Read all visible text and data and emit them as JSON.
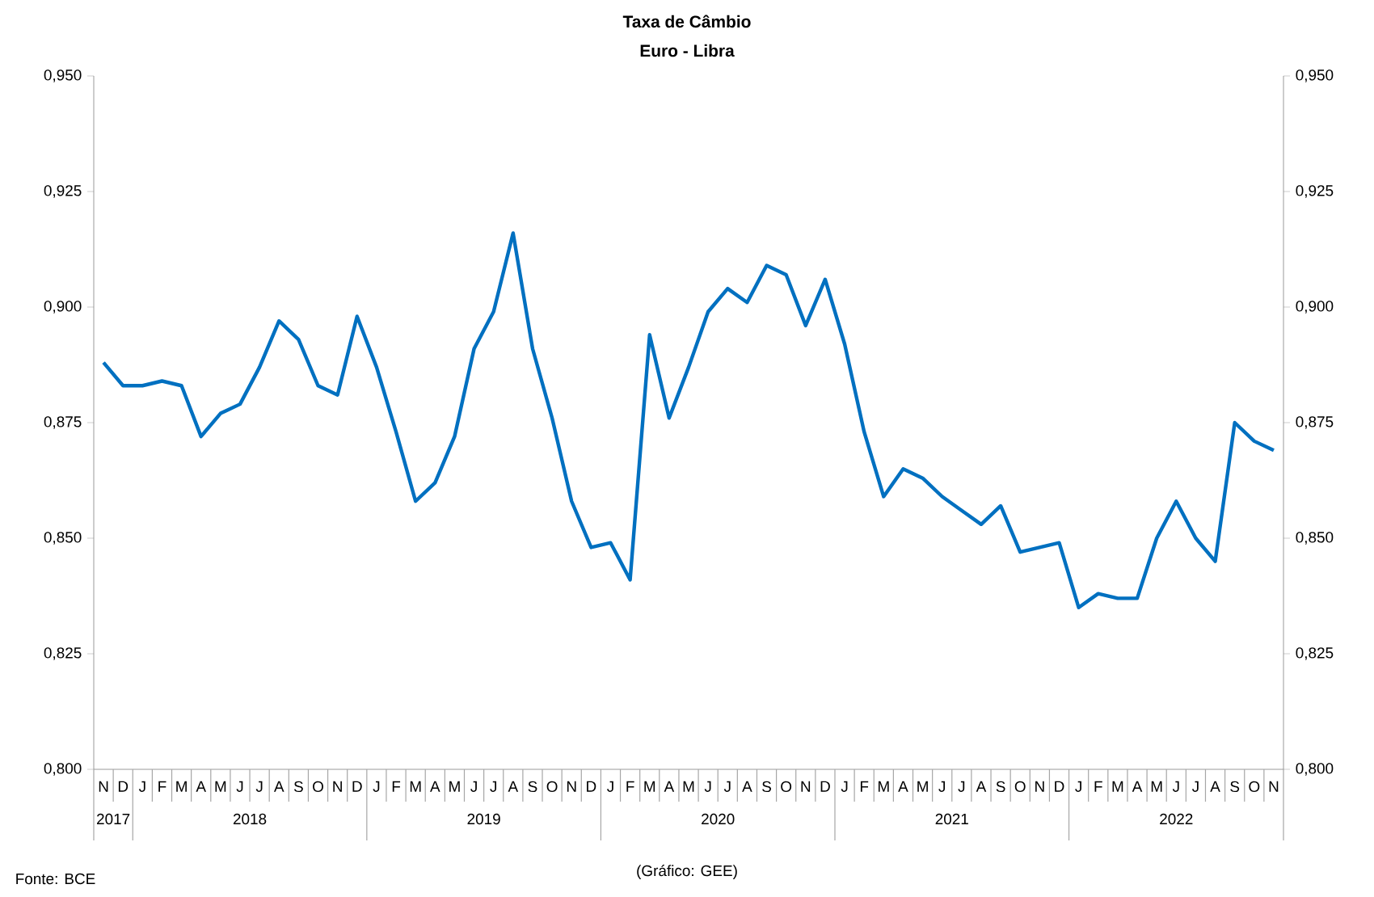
{
  "chart_data": {
    "type": "line",
    "title": "Taxa de Câmbio",
    "subtitle": "Euro - Libra",
    "categories": [
      "N",
      "D",
      "J",
      "F",
      "M",
      "A",
      "M",
      "J",
      "J",
      "A",
      "S",
      "O",
      "N",
      "D",
      "J",
      "F",
      "M",
      "A",
      "M",
      "J",
      "J",
      "A",
      "S",
      "O",
      "N",
      "D",
      "J",
      "F",
      "M",
      "A",
      "M",
      "J",
      "J",
      "A",
      "S",
      "O",
      "N",
      "D",
      "J",
      "F",
      "M",
      "A",
      "M",
      "J",
      "J",
      "A",
      "S",
      "O",
      "N",
      "D",
      "J",
      "F",
      "M",
      "A",
      "M",
      "J",
      "J",
      "A",
      "S",
      "O",
      "N"
    ],
    "series": [
      {
        "color": "#0070c0",
        "values": [
          0.888,
          0.883,
          0.883,
          0.884,
          0.883,
          0.872,
          0.877,
          0.879,
          0.887,
          0.897,
          0.893,
          0.883,
          0.881,
          0.898,
          0.887,
          0.873,
          0.858,
          0.862,
          0.872,
          0.891,
          0.899,
          0.916,
          0.891,
          0.876,
          0.858,
          0.848,
          0.849,
          0.841,
          0.894,
          0.876,
          0.887,
          0.899,
          0.904,
          0.901,
          0.909,
          0.907,
          0.896,
          0.906,
          0.892,
          0.873,
          0.859,
          0.865,
          0.863,
          0.859,
          0.856,
          0.853,
          0.857,
          0.847,
          0.848,
          0.849,
          0.835,
          0.838,
          0.837,
          0.837,
          0.85,
          0.858,
          0.85,
          0.845,
          0.875,
          0.871,
          0.869
        ]
      }
    ],
    "ylim": [
      0.8,
      0.95
    ],
    "yticks": [
      {
        "value": 0.8,
        "label": "0,800"
      },
      {
        "value": 0.825,
        "label": "0,825"
      },
      {
        "value": 0.85,
        "label": "0,850"
      },
      {
        "value": 0.875,
        "label": "0,875"
      },
      {
        "value": 0.9,
        "label": "0,900"
      },
      {
        "value": 0.925,
        "label": "0,925"
      },
      {
        "value": 0.95,
        "label": "0,950"
      }
    ],
    "y2lim": [
      0.8,
      0.95
    ],
    "y2ticks": [
      {
        "value": 0.8,
        "label": "0,800"
      },
      {
        "value": 0.825,
        "label": "0,825"
      },
      {
        "value": 0.85,
        "label": "0,850"
      },
      {
        "value": 0.875,
        "label": "0,875"
      },
      {
        "value": 0.9,
        "label": "0,900"
      },
      {
        "value": 0.925,
        "label": "0,925"
      },
      {
        "value": 0.95,
        "label": "0,950"
      }
    ],
    "grid": false,
    "marker": "none",
    "line_style": "solid",
    "annotations": [
      "2017",
      "2018",
      "2019",
      "2020",
      "2021",
      "2022",
      "Fonte: BCE",
      "(Gráfico: GEE)"
    ]
  }
}
